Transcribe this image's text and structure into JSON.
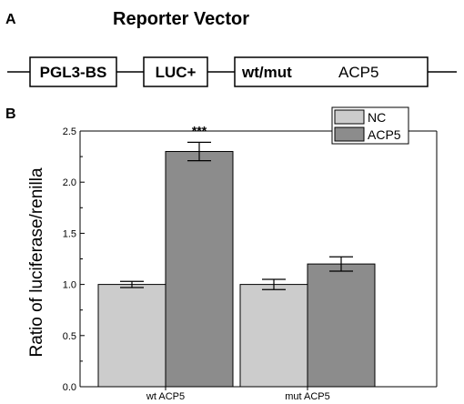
{
  "panel_a": {
    "letter": "A",
    "title": "Reporter Vector",
    "boxes": [
      {
        "kind": "pgl3",
        "label": "PGL3-BS"
      },
      {
        "kind": "luc",
        "label": "LUC+"
      },
      {
        "kind": "insert",
        "label": "wt/mut",
        "label2": "ACP5"
      }
    ]
  },
  "panel_b": {
    "letter": "B"
  },
  "chart_data": {
    "type": "bar",
    "categories": [
      "wt ACP5",
      "mut ACP5"
    ],
    "series": [
      {
        "name": "NC",
        "values": [
          1.0,
          1.0
        ],
        "errors": [
          0.03,
          0.05
        ],
        "color": "#cccccc"
      },
      {
        "name": "ACP5",
        "values": [
          2.3,
          1.2
        ],
        "errors": [
          0.09,
          0.07
        ],
        "color": "#8c8c8c"
      }
    ],
    "annotations": [
      {
        "category": "wt ACP5",
        "series": "ACP5",
        "text": "***"
      }
    ],
    "title": "",
    "xlabel": "",
    "ylabel": "Ratio of luciferase/renilla",
    "ylim": [
      0,
      2.5
    ],
    "yticks": [
      "0.0",
      "0.5",
      "1.0",
      "1.5",
      "2.0",
      "2.5"
    ],
    "legend_position": "top-right",
    "grid": false
  }
}
